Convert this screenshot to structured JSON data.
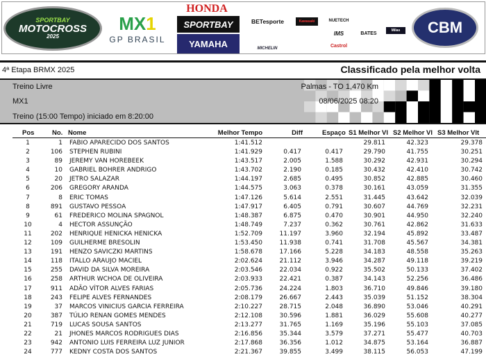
{
  "banner": {
    "logos": {
      "motocross": "SPORTBAY CAMPEONATO BRASILEIRO DE MOTOCROSS 2025",
      "mx1": "MX1",
      "gp": "GP BRASIL",
      "honda": "HONDA",
      "sportbay": "SPORTBAY",
      "yamaha": "YAMAHA",
      "bet": "BETesporte",
      "michelin": "MICHELIN",
      "kawasaki": "Kawasaki",
      "nuetech": "NUETECH",
      "ims": "IMS",
      "bates": "BATES",
      "castrol": "Castrol",
      "milas": "Milas",
      "cbm": "CBM"
    }
  },
  "event": "4ª Etapa BRMX 2025",
  "classification": "Classificado pela melhor volta",
  "session": "Treino Livre",
  "category": "MX1",
  "info": "Treino (15:00 Tempo) iniciado em 8:20:00",
  "location": "Palmas - TO 1,470 Km",
  "datetime": "08/06/2025 08:20",
  "columns": {
    "pos": "Pos",
    "no": "No.",
    "name": "Nome",
    "best": "Melhor Tempo",
    "diff": "Diff",
    "gap": "Espaço",
    "s1": "S1 Melhor Vl",
    "s2": "S2 Melhor Vl",
    "s3": "S3 Melhor Vlt"
  },
  "rows": [
    [
      "1",
      "1",
      "FABIO APARECIDO DOS SANTOS",
      "1:41.512",
      "",
      "",
      "29.811",
      "42.323",
      "29.378"
    ],
    [
      "2",
      "106",
      "STEPHEN RUBINI",
      "1:41.929",
      "0.417",
      "0.417",
      "29.790",
      "41.755",
      "30.251"
    ],
    [
      "3",
      "89",
      "JEREMY VAN HOREBEEK",
      "1:43.517",
      "2.005",
      "1.588",
      "30.292",
      "42.931",
      "30.294"
    ],
    [
      "4",
      "10",
      "GABRIEL BOHRER ANDRIGO",
      "1:43.702",
      "2.190",
      "0.185",
      "30.432",
      "42.410",
      "30.742"
    ],
    [
      "5",
      "20",
      "JETRO SALAZAR",
      "1:44.197",
      "2.685",
      "0.495",
      "30.852",
      "42.885",
      "30.460"
    ],
    [
      "6",
      "206",
      "GREGORY ARANDA",
      "1:44.575",
      "3.063",
      "0.378",
      "30.161",
      "43.059",
      "31.355"
    ],
    [
      "7",
      "8",
      "ERIC TOMAS",
      "1:47.126",
      "5.614",
      "2.551",
      "31.445",
      "43.642",
      "32.039"
    ],
    [
      "8",
      "891",
      "GUSTAVO PESSOA",
      "1:47.917",
      "6.405",
      "0.791",
      "30.607",
      "44.769",
      "32.231"
    ],
    [
      "9",
      "61",
      "FREDERICO MOLINA SPAGNOL",
      "1:48.387",
      "6.875",
      "0.470",
      "30.901",
      "44.950",
      "32.240"
    ],
    [
      "10",
      "4",
      "HECTOR ASSUNÇÃO",
      "1:48.749",
      "7.237",
      "0.362",
      "30.761",
      "42.862",
      "31.633"
    ],
    [
      "11",
      "202",
      "HENRIQUE HENICKA HENICKA",
      "1:52.709",
      "11.197",
      "3.960",
      "32.194",
      "45.892",
      "33.487"
    ],
    [
      "12",
      "109",
      "GUILHERME BRESOLIN",
      "1:53.450",
      "11.938",
      "0.741",
      "31.708",
      "45.567",
      "34.381"
    ],
    [
      "13",
      "191",
      "HENZO SAVICZKI MARTINS",
      "1:58.678",
      "17.166",
      "5.228",
      "34.183",
      "48.558",
      "35.263"
    ],
    [
      "14",
      "118",
      "ITALLO ARAUJO MACIEL",
      "2:02.624",
      "21.112",
      "3.946",
      "34.287",
      "49.118",
      "39.219"
    ],
    [
      "15",
      "255",
      "DAVID DA SILVA MOREIRA",
      "2:03.546",
      "22.034",
      "0.922",
      "35.502",
      "50.133",
      "37.402"
    ],
    [
      "16",
      "258",
      "ARTHUR WCHOA DE OLIVEIRA",
      "2:03.933",
      "22.421",
      "0.387",
      "34.143",
      "52.256",
      "36.486"
    ],
    [
      "17",
      "911",
      "ADÃO VÍTOR ALVES FARIAS",
      "2:05.736",
      "24.224",
      "1.803",
      "36.710",
      "49.846",
      "39.180"
    ],
    [
      "18",
      "243",
      "FELIPE ALVES FERNANDES",
      "2:08.179",
      "26.667",
      "2.443",
      "35.039",
      "51.152",
      "38.304"
    ],
    [
      "19",
      "37",
      "MARCOS VINICIUS GARCIA FERREIRA",
      "2:10.227",
      "28.715",
      "2.048",
      "36.890",
      "53.046",
      "40.291"
    ],
    [
      "20",
      "387",
      "TÚLIO RENAN GOMES MENDES",
      "2:12.108",
      "30.596",
      "1.881",
      "36.029",
      "55.608",
      "40.277"
    ],
    [
      "21",
      "719",
      "LUCAS SOUSA SANTOS",
      "2:13.277",
      "31.765",
      "1.169",
      "35.196",
      "55.103",
      "37.085"
    ],
    [
      "22",
      "21",
      "JHONES MARCOS RODRIGUES DIAS",
      "2:16.856",
      "35.344",
      "3.579",
      "37.271",
      "55.477",
      "40.703"
    ],
    [
      "23",
      "942",
      "ANTONIO LUIS FERREIRA LUZ JUNIOR",
      "2:17.868",
      "36.356",
      "1.012",
      "34.875",
      "53.164",
      "36.887"
    ],
    [
      "24",
      "777",
      "KEDNY COSTA DOS SANTOS",
      "2:21.367",
      "39.855",
      "3.499",
      "38.115",
      "56.053",
      "47.199"
    ]
  ]
}
